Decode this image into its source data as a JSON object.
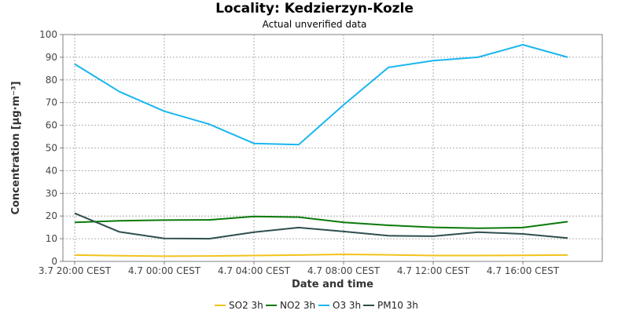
{
  "chart_data": {
    "type": "line",
    "title": "Locality: Kedzierzyn-Kozle",
    "subtitle": "Actual unverified data",
    "xlabel": "Date and time",
    "ylabel": "Concentration [µg·m⁻³]",
    "ylim": [
      0,
      100
    ],
    "yticks": [
      0,
      10,
      20,
      30,
      40,
      50,
      60,
      70,
      80,
      90,
      100
    ],
    "x_tick_labels": [
      "3.7 20:00 CEST",
      "4.7 00:00 CEST",
      "4.7 04:00 CEST",
      "4.7 08:00 CEST",
      "4.7 12:00 CEST",
      "4.7 16:00 CEST"
    ],
    "x_tick_hours": [
      0,
      4,
      8,
      12,
      16,
      20
    ],
    "x_hours": [
      0,
      2,
      4,
      6,
      8,
      10,
      12,
      14,
      16,
      18,
      20,
      22
    ],
    "grid": true,
    "legend_position": "bottom",
    "series": [
      {
        "name": "SO2 3h",
        "color": "#f2c31b",
        "values": [
          2.8,
          2.5,
          2.3,
          2.4,
          2.6,
          2.8,
          3.1,
          2.9,
          2.6,
          2.6,
          2.7,
          2.8
        ]
      },
      {
        "name": "NO2 3h",
        "color": "#0a7a0a",
        "values": [
          17.2,
          17.9,
          18.2,
          18.3,
          19.8,
          19.5,
          17.2,
          15.9,
          15.0,
          14.6,
          14.9,
          17.5
        ]
      },
      {
        "name": "O3 3h",
        "color": "#1ab6ee",
        "values": [
          87.0,
          74.8,
          66.2,
          60.5,
          52.0,
          51.5,
          69.0,
          85.5,
          88.5,
          90.0,
          95.5,
          90.0
        ]
      },
      {
        "name": "PM10 3h",
        "color": "#2f4f4f",
        "values": [
          21.2,
          13.0,
          10.1,
          10.0,
          12.9,
          14.9,
          13.2,
          11.3,
          11.1,
          12.9,
          12.1,
          10.3
        ]
      }
    ]
  }
}
